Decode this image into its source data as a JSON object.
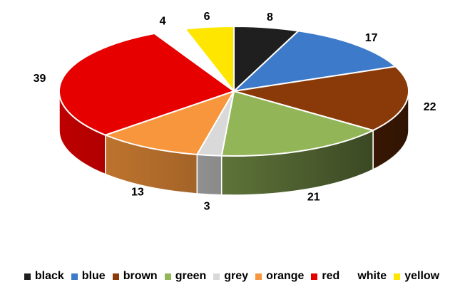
{
  "chart_data": {
    "type": "pie",
    "categories": [
      "black",
      "blue",
      "brown",
      "green",
      "grey",
      "orange",
      "red",
      "white",
      "yellow"
    ],
    "values": [
      8,
      17,
      22,
      21,
      3,
      13,
      39,
      4,
      6
    ],
    "colors": [
      "#1f1f1f",
      "#3d7ac9",
      "#8a3a08",
      "#92b558",
      "#d9d9d9",
      "#f7963c",
      "#e60000",
      "#ffffff",
      "#ffe600"
    ],
    "title": "",
    "legend_position": "bottom",
    "style": "3d"
  }
}
